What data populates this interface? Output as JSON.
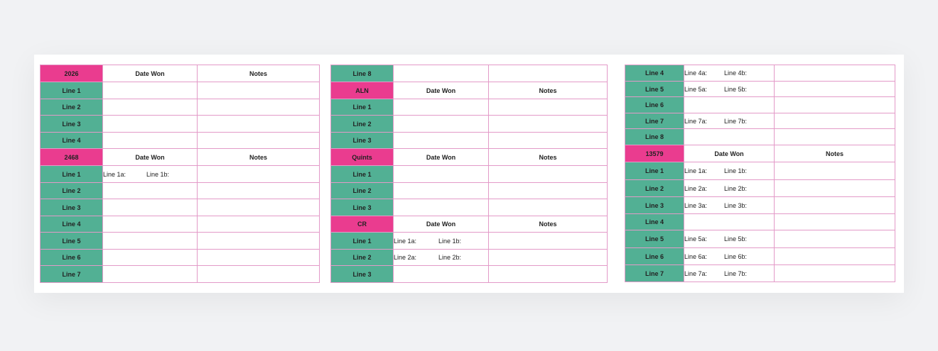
{
  "col1": {
    "widths": [
      88,
      133,
      172
    ],
    "rows": [
      {
        "kind": "header",
        "label": "2026",
        "date_won": "Date Won",
        "notes": "Notes"
      },
      {
        "kind": "row",
        "label": "Line 1",
        "a": "",
        "b": ""
      },
      {
        "kind": "row",
        "label": "Line 2",
        "a": "",
        "b": ""
      },
      {
        "kind": "row",
        "label": "Line 3",
        "a": "",
        "b": ""
      },
      {
        "kind": "row",
        "label": "Line 4",
        "a": "",
        "b": ""
      },
      {
        "kind": "header",
        "label": "2468",
        "date_won": "Date Won",
        "notes": "Notes"
      },
      {
        "kind": "row",
        "label": "Line 1",
        "a": "Line 1a:",
        "b": "Line 1b:"
      },
      {
        "kind": "row",
        "label": "Line 2",
        "a": "",
        "b": ""
      },
      {
        "kind": "row",
        "label": "Line 3",
        "a": "",
        "b": ""
      },
      {
        "kind": "row",
        "label": "Line 4",
        "a": "",
        "b": ""
      },
      {
        "kind": "row",
        "label": "Line 5",
        "a": "",
        "b": ""
      },
      {
        "kind": "row",
        "label": "Line 6",
        "a": "",
        "b": ""
      },
      {
        "kind": "row",
        "label": "Line 7",
        "a": "",
        "b": ""
      }
    ]
  },
  "col2": {
    "widths": [
      88,
      134,
      167
    ],
    "rows": [
      {
        "kind": "row",
        "label": "Line 8",
        "a": "",
        "b": ""
      },
      {
        "kind": "header",
        "label": "ALN",
        "date_won": "Date Won",
        "notes": "Notes"
      },
      {
        "kind": "row",
        "label": "Line 1",
        "a": "",
        "b": ""
      },
      {
        "kind": "row",
        "label": "Line 2",
        "a": "",
        "b": ""
      },
      {
        "kind": "row",
        "label": "Line 3",
        "a": "",
        "b": ""
      },
      {
        "kind": "header",
        "label": "Quints",
        "date_won": "Date Won",
        "notes": "Notes"
      },
      {
        "kind": "row",
        "label": "Line 1",
        "a": "",
        "b": ""
      },
      {
        "kind": "row",
        "label": "Line 2",
        "a": "",
        "b": ""
      },
      {
        "kind": "row",
        "label": "Line 3",
        "a": "",
        "b": ""
      },
      {
        "kind": "header",
        "label": "CR",
        "date_won": "Date Won",
        "notes": "Notes"
      },
      {
        "kind": "row",
        "label": "Line 1",
        "a": "Line 1a:",
        "b": "Line 1b:"
      },
      {
        "kind": "row",
        "label": "Line 2",
        "a": "Line 2a:",
        "b": "Line 2b:"
      },
      {
        "kind": "row",
        "label": "Line 3",
        "a": "",
        "b": ""
      }
    ]
  },
  "col3": {
    "widths": [
      83,
      127,
      170
    ],
    "rows": [
      {
        "kind": "row",
        "label": "Line 4",
        "a": "Line 4a:",
        "b": "Line 4b:"
      },
      {
        "kind": "row",
        "label": "Line 5",
        "a": "Line 5a:",
        "b": "Line 5b:"
      },
      {
        "kind": "row",
        "label": "Line 6",
        "a": "",
        "b": ""
      },
      {
        "kind": "row",
        "label": "Line 7",
        "a": "Line 7a:",
        "b": "Line 7b:"
      },
      {
        "kind": "row",
        "label": "Line 8",
        "a": "",
        "b": ""
      },
      {
        "kind": "header",
        "label": "13579",
        "date_won": "Date Won",
        "notes": "Notes"
      },
      {
        "kind": "row",
        "label": "Line 1",
        "a": "Line 1a:",
        "b": "Line 1b:"
      },
      {
        "kind": "row",
        "label": "Line 2",
        "a": "Line 2a:",
        "b": "Line 2b:"
      },
      {
        "kind": "row",
        "label": "Line 3",
        "a": "Line 3a:",
        "b": "Line 3b:"
      },
      {
        "kind": "row",
        "label": "Line 4",
        "a": "",
        "b": ""
      },
      {
        "kind": "row",
        "label": "Line 5",
        "a": "Line 5a:",
        "b": "Line 5b:"
      },
      {
        "kind": "row",
        "label": "Line 6",
        "a": "Line 6a:",
        "b": "Line 6b:"
      },
      {
        "kind": "row",
        "label": "Line 7",
        "a": "Line 7a:",
        "b": "Line 7b:"
      }
    ]
  },
  "colors": {
    "label_green": "#52b094",
    "header_pink": "#ea3c8f",
    "grid_line": "#e39ac8"
  }
}
